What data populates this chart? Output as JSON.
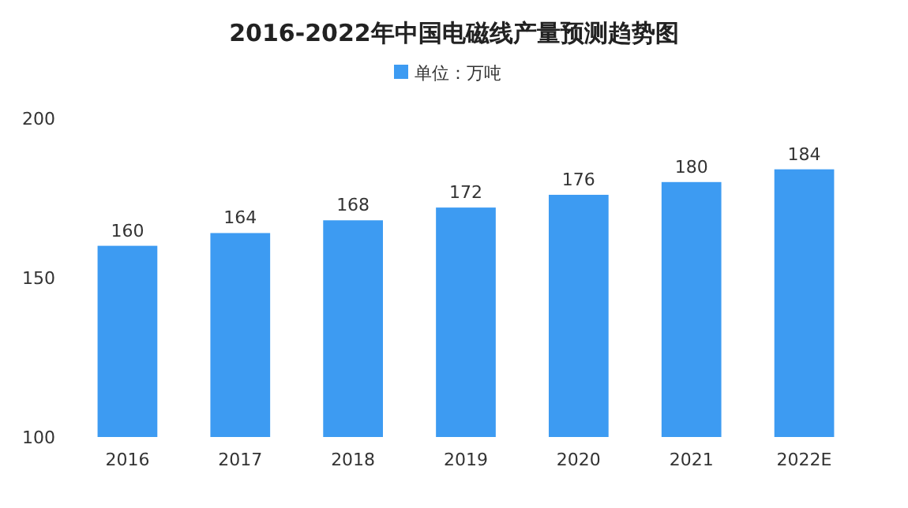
{
  "chart_data": {
    "type": "bar",
    "title": "2016-2022年中国电磁线产量预测趋势图",
    "categories": [
      "2016",
      "2017",
      "2018",
      "2019",
      "2020",
      "2021",
      "2022E"
    ],
    "series": [
      {
        "name": "单位：万吨",
        "color": "#3d9bf2",
        "values": [
          160,
          164,
          168,
          172,
          176,
          180,
          184
        ]
      }
    ],
    "ylim": [
      100,
      200
    ],
    "yticks": [
      100,
      150,
      200
    ],
    "data_labels": true,
    "legend": "top"
  }
}
